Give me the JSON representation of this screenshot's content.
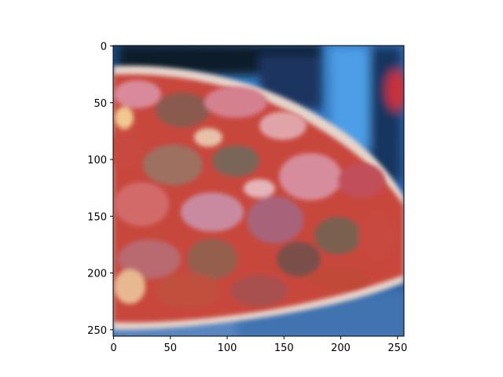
{
  "chart_data": {
    "type": "heatmap",
    "title": "",
    "xlabel": "",
    "ylabel": "",
    "xlim": [
      0,
      256
    ],
    "ylim": [
      256,
      0
    ],
    "x_ticks": [
      0,
      50,
      100,
      150,
      200,
      250
    ],
    "y_ticks": [
      0,
      50,
      100,
      150,
      200,
      250
    ],
    "x_tick_labels": [
      "0",
      "50",
      "100",
      "150",
      "200",
      "250"
    ],
    "y_tick_labels": [
      "0",
      "50",
      "100",
      "150",
      "200",
      "250"
    ],
    "image_content": "pizza-slice-photo",
    "grid": false,
    "colors": {
      "background_blue": "#2f6fb6",
      "dark_navy": "#0e1a2c",
      "crust": "#dcc7ba",
      "sauce_red": "#c8473d",
      "pepperoni": "#b85a5a",
      "ham_pink": "#d98a9a",
      "mushroom_brown": "#8a6a5a",
      "cheese": "#e8b890",
      "plate_blue": "#4a78b0"
    }
  }
}
